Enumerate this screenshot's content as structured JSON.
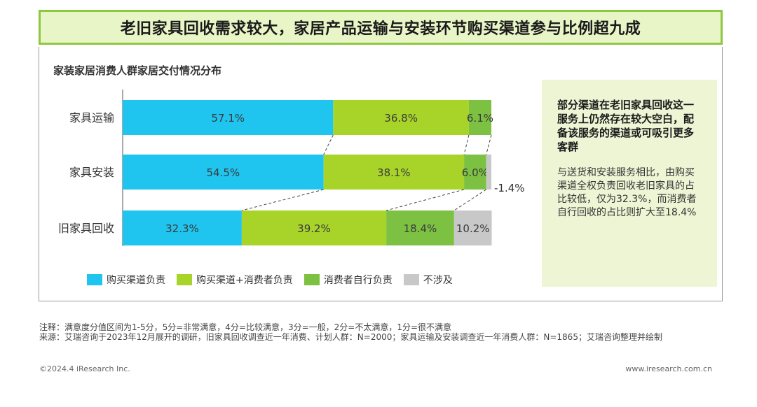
{
  "header": {
    "title": "老旧家具回收需求较大，家居产品运输与安装环节购买渠道参与比例超九成"
  },
  "colors": {
    "title_border": "#8fc742",
    "title_bg": "#e8f5c6",
    "side_bg": "#edf5d5",
    "series": [
      "#1fc4ef",
      "#a8d42a",
      "#7dc142",
      "#c8c8c8"
    ]
  },
  "chart_data": {
    "type": "bar",
    "orientation": "horizontal",
    "stacked": true,
    "title": "家装家居消费人群家居交付情况分布",
    "categories": [
      "家具运输",
      "家具安装",
      "旧家具回收"
    ],
    "series": [
      {
        "name": "购买渠道负责",
        "values": [
          57.1,
          54.5,
          32.3
        ],
        "labels": [
          "57.1%",
          "54.5%",
          "32.3%"
        ]
      },
      {
        "name": "购买渠道+消费者负责",
        "values": [
          36.8,
          38.1,
          39.2
        ],
        "labels": [
          "36.8%",
          "38.1%",
          "39.2%"
        ]
      },
      {
        "name": "消费者自行负责",
        "values": [
          6.1,
          6.0,
          18.4
        ],
        "labels": [
          "6.1%",
          "6.0%",
          "18.4%"
        ]
      },
      {
        "name": "不涉及",
        "values": [
          0,
          1.4,
          10.2
        ],
        "labels": [
          "",
          "1.4%",
          "10.2%"
        ]
      }
    ],
    "xlim": [
      0,
      100
    ],
    "grid": false,
    "legend_position": "bottom"
  },
  "side": {
    "headline": "部分渠道在老旧家具回收这一服务上仍然存在较大空白，配备该服务的渠道或可吸引更多客群",
    "body": "与送货和安装服务相比，由购买渠道全权负责回收老旧家具的占比较低，仅为32.3%，而消费者自行回收的占比则扩大至18.4%"
  },
  "notes": {
    "line1": "注释：满意度分值区间为1-5分，5分=非常满意，4分=比较满意，3分=一般，2分=不太满意，1分=很不满意",
    "line2": "来源：艾瑞咨询于2023年12月展开的调研，旧家具回收调查近一年消费、计划人群：N=2000；家具运输及安装调查近一年消费人群：N=1865；艾瑞咨询整理并绘制"
  },
  "footer": {
    "copyright": "©2024.4 iResearch Inc.",
    "website": "www.iresearch.com.cn"
  }
}
